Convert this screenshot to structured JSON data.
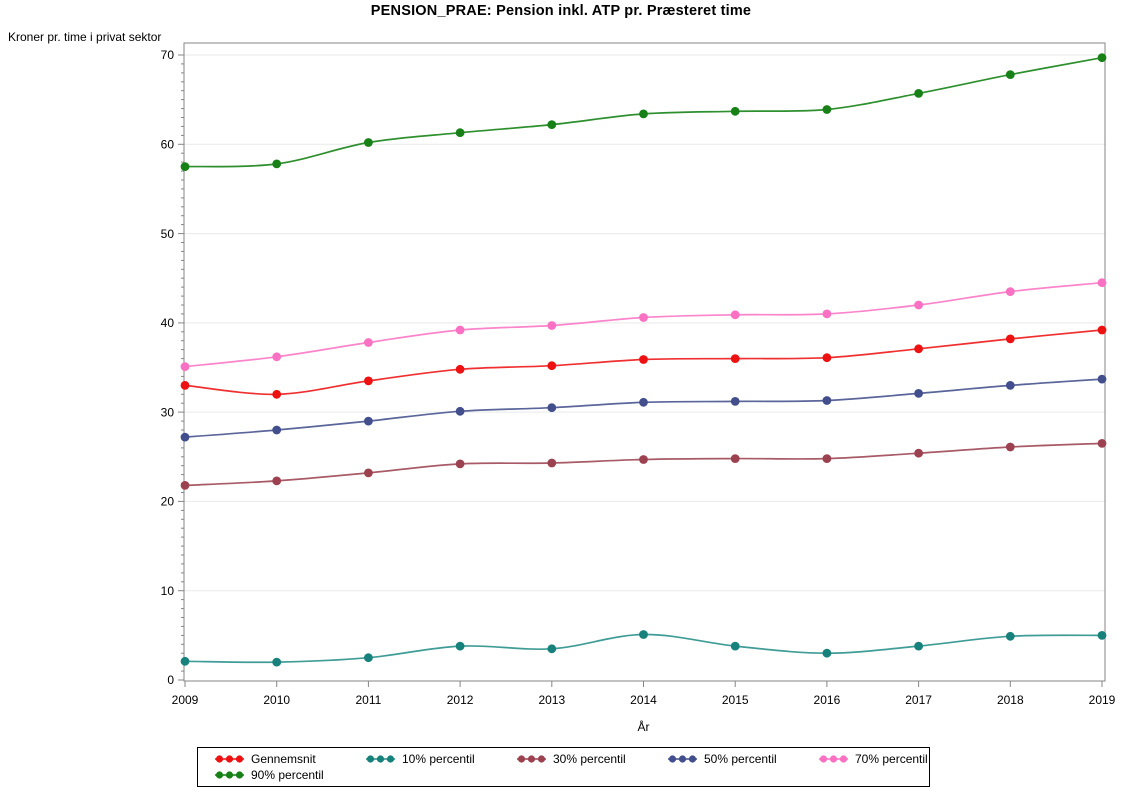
{
  "chart_data": {
    "type": "line",
    "title": "PENSION_PRAE: Pension inkl. ATP pr. Præsteret time",
    "ylabel": "Kroner pr. time i privat sektor",
    "xlabel": "År",
    "categories": [
      "2009",
      "2010",
      "2011",
      "2012",
      "2013",
      "2014",
      "2015",
      "2016",
      "2017",
      "2018",
      "2019"
    ],
    "y_ticks": [
      0,
      10,
      20,
      30,
      40,
      50,
      60,
      70
    ],
    "ylim": [
      0,
      70
    ],
    "minor_tick_interval": 1,
    "grid": "horizontal-major-only",
    "legend_position": "bottom",
    "colors": {
      "frame": "#858585",
      "gridline": "#e9e9e9",
      "text": "#000000"
    },
    "series": [
      {
        "name": "Gennemsnit",
        "color": "#ee1111",
        "line_color": "#f03030",
        "values": [
          33.0,
          32.0,
          33.5,
          34.8,
          35.2,
          35.9,
          36.0,
          36.1,
          37.1,
          38.2,
          39.2
        ]
      },
      {
        "name": "10% percentil",
        "color": "#17817b",
        "line_color": "#3f9c96",
        "values": [
          2.1,
          2.0,
          2.5,
          3.8,
          3.5,
          5.1,
          3.8,
          3.0,
          3.8,
          4.9,
          5.0
        ]
      },
      {
        "name": "30% percentil",
        "color": "#9c4150",
        "line_color": "#a85a67",
        "values": [
          21.8,
          22.3,
          23.2,
          24.2,
          24.3,
          24.7,
          24.8,
          24.8,
          25.4,
          26.1,
          26.5
        ]
      },
      {
        "name": "50% percentil",
        "color": "#424f8c",
        "line_color": "#5a659a",
        "values": [
          27.2,
          28.0,
          29.0,
          30.1,
          30.5,
          31.1,
          31.2,
          31.3,
          32.1,
          33.0,
          33.7
        ]
      },
      {
        "name": "70% percentil",
        "color": "#fa70c2",
        "line_color": "#fb84cb",
        "values": [
          35.1,
          36.2,
          37.8,
          39.2,
          39.7,
          40.6,
          40.9,
          41.0,
          42.0,
          43.5,
          44.5
        ]
      },
      {
        "name": "90% percentil",
        "color": "#178117",
        "line_color": "#2e8f2e",
        "values": [
          57.5,
          57.8,
          60.2,
          61.3,
          62.2,
          63.4,
          63.7,
          63.9,
          65.7,
          67.8,
          69.7
        ]
      }
    ]
  }
}
